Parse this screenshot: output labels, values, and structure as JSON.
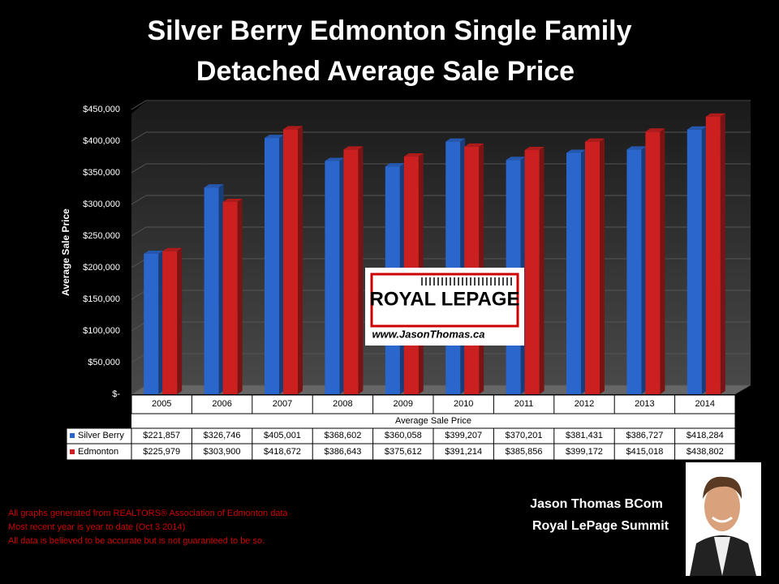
{
  "chart_data": {
    "type": "bar",
    "title": [
      "Silver Berry Edmonton Single Family",
      "Detached Average Sale Price"
    ],
    "y_label": "Average Sale Price",
    "x_label": "Average Sale Price",
    "categories": [
      "2005",
      "2006",
      "2007",
      "2008",
      "2009",
      "2010",
      "2011",
      "2012",
      "2013",
      "2014"
    ],
    "series": [
      {
        "name": "Silver Berry",
        "color": "#2a66cc",
        "values": [
          221857,
          326746,
          405001,
          368602,
          360058,
          399207,
          370201,
          381431,
          386727,
          418284
        ],
        "value_labels": [
          "$221,857",
          "$326,746",
          "$405,001",
          "$368,602",
          "$360,058",
          "$399,207",
          "$370,201",
          "$381,431",
          "$386,727",
          "$418,284"
        ]
      },
      {
        "name": "Edmonton",
        "color": "#cc2020",
        "values": [
          225979,
          303900,
          418672,
          386643,
          375612,
          391214,
          385856,
          399172,
          415018,
          438802
        ],
        "value_labels": [
          "$225,979",
          "$303,900",
          "$418,672",
          "$386,643",
          "$375,612",
          "$391,214",
          "$385,856",
          "$399,172",
          "$415,018",
          "$438,802"
        ]
      }
    ],
    "ylim": [
      0,
      450000
    ],
    "yticks": [
      {
        "value": 0,
        "label": "$-"
      },
      {
        "value": 50000,
        "label": "$50,000"
      },
      {
        "value": 100000,
        "label": "$100,000"
      },
      {
        "value": 150000,
        "label": "$150,000"
      },
      {
        "value": 200000,
        "label": "$200,000"
      },
      {
        "value": 250000,
        "label": "$250,000"
      },
      {
        "value": 300000,
        "label": "$300,000"
      },
      {
        "value": 350000,
        "label": "$350,000"
      },
      {
        "value": 400000,
        "label": "$400,000"
      },
      {
        "value": 450000,
        "label": "$450,000"
      }
    ],
    "grid": true
  },
  "logo": {
    "brand": "ROYAL LEPAGE",
    "url": "www.JasonThomas.ca"
  },
  "footnotes": [
    "All graphs generated from REALTORS® Association of Edmonton data",
    "Most recent year is year to date (Oct 3 2014)",
    "All data is believed to be accurate but is not guaranteed to be so."
  ],
  "author": {
    "name": "Jason Thomas BCom",
    "company": "Royal LePage Summit"
  }
}
